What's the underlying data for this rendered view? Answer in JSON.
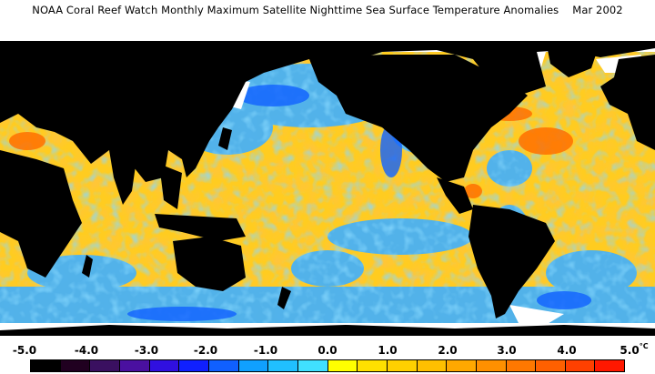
{
  "title": "NOAA Coral Reef Watch Monthly Maximum Satellite Nighttime Sea Surface Temperature Anomalies",
  "date": "Mar 2002",
  "legend": {
    "ticks": [
      "-5.0",
      "-4.0",
      "-3.0",
      "-2.0",
      "-1.0",
      "0.0",
      "1.0",
      "2.0",
      "3.0",
      "4.0",
      "5.0"
    ],
    "unit": "°C",
    "colors": [
      "#000000",
      "#200020",
      "#3a1060",
      "#4a10a0",
      "#3010e0",
      "#1020ff",
      "#1060ff",
      "#10a0ff",
      "#20c0ff",
      "#40e0ff",
      "#ffff00",
      "#ffe000",
      "#ffd000",
      "#ffc000",
      "#ffa800",
      "#ff9000",
      "#ff7800",
      "#ff6000",
      "#ff4000",
      "#ff1800"
    ]
  },
  "colors": {
    "land": "#000000",
    "ice": "#ffffff",
    "ocean_warm": "#ffcc20",
    "ocean_cool": "#40b0ff"
  }
}
